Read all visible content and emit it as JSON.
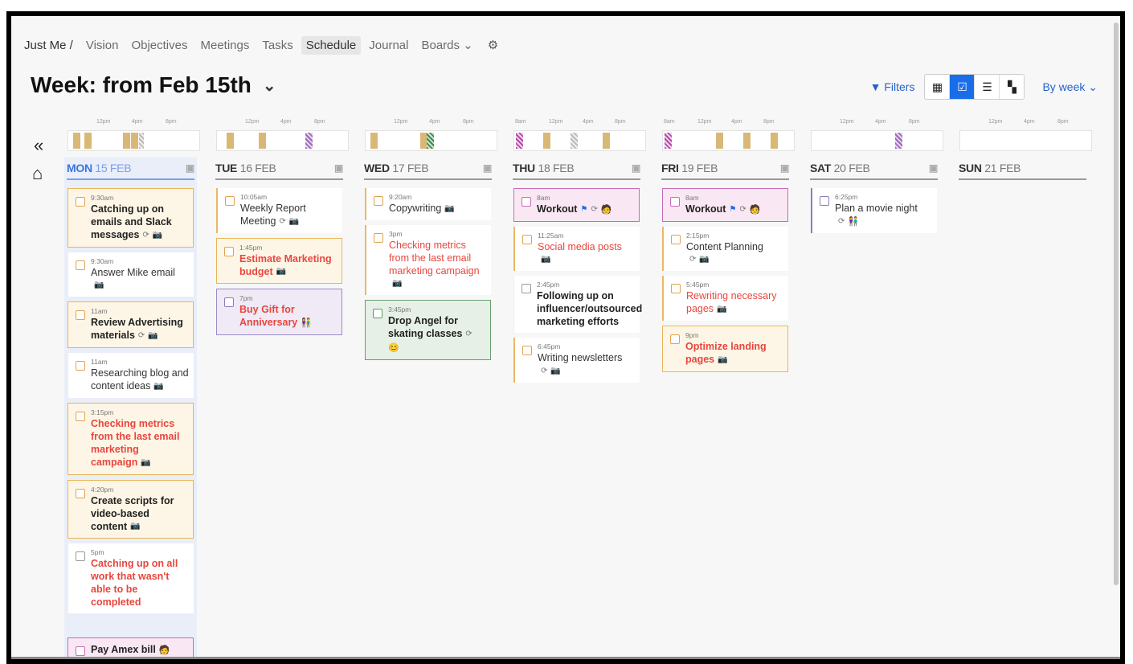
{
  "nav": {
    "crumb": "Just Me /",
    "items": [
      "Vision",
      "Objectives",
      "Meetings",
      "Tasks",
      "Schedule",
      "Journal",
      "Boards ⌄"
    ],
    "active": "Schedule"
  },
  "header": {
    "title": "Week: from Feb 15th",
    "filters_label": "Filters",
    "by_week_label": "By week ⌄"
  },
  "icons": {
    "prev": "«",
    "next": "»",
    "home": "⌂",
    "gear": "⚙",
    "repeat": "⟳",
    "camera": "📷",
    "flag": "⚑",
    "person": "🧑",
    "couple": "👫",
    "face": "😊",
    "cal_plus": "📅"
  },
  "timeline": [
    {
      "ticks": [
        "12pm",
        "4pm",
        "8pm"
      ]
    },
    {
      "ticks": [
        "12pm",
        "4pm",
        "8pm"
      ]
    },
    {
      "ticks": [
        "12pm",
        "4pm",
        "8pm"
      ]
    },
    {
      "ticks": [
        "8am",
        "12pm",
        "4pm",
        "8pm"
      ]
    },
    {
      "ticks": [
        "8am",
        "12pm",
        "4pm",
        "8pm"
      ]
    },
    {
      "ticks": [
        "12pm",
        "4pm",
        "8pm"
      ]
    },
    {
      "ticks": [
        "12pm",
        "4pm",
        "8pm"
      ]
    }
  ],
  "days": [
    {
      "dow": "MON",
      "date": "15 FEB",
      "tasks": [
        {
          "time": "9:30am",
          "name": "Catching up on emails and Slack messages"
        },
        {
          "time": "9:30am",
          "name": "Answer Mike email"
        },
        {
          "time": "11am",
          "name": "Review Advertising materials"
        },
        {
          "time": "11am",
          "name": "Researching blog and content ideas"
        },
        {
          "time": "3:15pm",
          "name": "Checking metrics from the last email marketing campaign"
        },
        {
          "time": "4:20pm",
          "name": "Create scripts for video-based content"
        },
        {
          "time": "5pm",
          "name": "Catching up on all work that wasn't able to be completed"
        },
        {
          "time": "",
          "name": "Pay Amex bill"
        }
      ]
    },
    {
      "dow": "TUE",
      "date": "16 FEB",
      "tasks": [
        {
          "time": "10:05am",
          "name": "Weekly Report Meeting"
        },
        {
          "time": "1:45pm",
          "name": "Estimate Marketing budget"
        },
        {
          "time": "7pm",
          "name": "Buy Gift for Anniversary"
        }
      ]
    },
    {
      "dow": "WED",
      "date": "17 FEB",
      "tasks": [
        {
          "time": "9:20am",
          "name": "Copywriting"
        },
        {
          "time": "3pm",
          "name": "Checking metrics from the last email marketing campaign"
        },
        {
          "time": "3:45pm",
          "name": "Drop Angel for skating classes"
        }
      ]
    },
    {
      "dow": "THU",
      "date": "18 FEB",
      "tasks": [
        {
          "time": "8am",
          "name": "Workout"
        },
        {
          "time": "11:25am",
          "name": "Social media posts"
        },
        {
          "time": "2:45pm",
          "name": "Following up on influencer/outsourced marketing efforts"
        },
        {
          "time": "6:45pm",
          "name": "Writing newsletters"
        }
      ]
    },
    {
      "dow": "FRI",
      "date": "19 FEB",
      "tasks": [
        {
          "time": "8am",
          "name": "Workout"
        },
        {
          "time": "2:15pm",
          "name": "Content Planning"
        },
        {
          "time": "5:45pm",
          "name": "Rewriting necessary pages"
        },
        {
          "time": "9pm",
          "name": "Optimize landing pages"
        }
      ]
    },
    {
      "dow": "SAT",
      "date": "20 FEB",
      "tasks": [
        {
          "time": "6:25pm",
          "name": "Plan a movie night"
        }
      ]
    },
    {
      "dow": "SUN",
      "date": "21 FEB",
      "tasks": []
    }
  ]
}
